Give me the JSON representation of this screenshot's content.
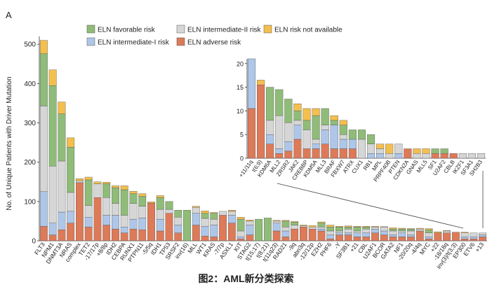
{
  "panel_label": "A",
  "caption": "图2：AML新分类探索",
  "colors": {
    "favorable": "#8fbc78",
    "intermediate1": "#aec6e8",
    "intermediate2": "#d6d6d6",
    "adverse": "#dd7a58",
    "not_available": "#f4bf4e"
  },
  "chart_data": [
    {
      "type": "bar",
      "stacked": true,
      "ylabel": "No. of Unique Patients with Driver Mutation",
      "ylim": [
        0,
        520
      ],
      "yticks": [
        0,
        100,
        200,
        300,
        400,
        500
      ],
      "legend": {
        "placement": "top",
        "entries": [
          {
            "key": "favorable",
            "label": "ELN favorable risk"
          },
          {
            "key": "intermediate2",
            "label": "ELN intermediate-II risk"
          },
          {
            "key": "not_available",
            "label": "ELN risk not available"
          },
          {
            "key": "intermediate1",
            "label": "ELN intermediate-I risk"
          },
          {
            "key": "adverse",
            "label": "ELN adverse risk"
          }
        ]
      },
      "series_order": [
        "adverse",
        "intermediate1",
        "intermediate2",
        "favorable",
        "not_available"
      ],
      "categories": [
        "FLT3",
        "NPM1",
        "DNMT3A",
        "NRAS",
        "complex",
        "TET2",
        "-17/17p",
        "+8/8p",
        "IDH2",
        "CEBPA",
        "RUNX1",
        "PTPN11",
        "-5/5q",
        "IDH1",
        "TP53",
        "SRSF2",
        "inv(16)",
        "MLL",
        "WT1",
        "KRAS",
        "-7/7p",
        "ASXL1",
        "KIT",
        "STAG2",
        "t(15;17)",
        "t(8;21)",
        "t(11q23)",
        "RAD21",
        "-9q",
        "abn3q",
        "-12/12p",
        "EZH2",
        "PHF6",
        "-Y",
        "SF3B1",
        "+21",
        "CBL",
        "U2AF1",
        "BCOR",
        "GATA2",
        "NF1",
        "-20/20q",
        "-4/4q",
        "MYC",
        "+22",
        "-18/18q",
        "inv(3)/t(3;3)",
        "EP300",
        "ETV6",
        "+13"
      ],
      "labeled_categories": [
        "FLT3",
        "NPM1",
        "DNMT3A",
        "NRAS",
        "complex",
        "TET2",
        "-17/17p",
        "+8/8p",
        "IDH2",
        "CEBPA",
        "RUNX1",
        "PTPN11",
        "-5/5q",
        "IDH1",
        "TP53",
        "SRSF2",
        "inv(16)",
        "MLL",
        "WT1",
        "KRAS",
        "-7/7p",
        "ASXL1",
        "KIT",
        "STAG2",
        "t(15;17)",
        "t(8;21)",
        "t(11q23)",
        "RAD21",
        "-9q",
        "abn3q",
        "-12/12p",
        "EZH2",
        "PHF6",
        "-Y",
        "SF3B1",
        "+21",
        "CBL",
        "U2AF1",
        "BCOR",
        "GATA2",
        "NF1",
        "-20/20q",
        "-4/4q",
        "MYC",
        "+22",
        "-18/18q",
        "inv(3)/t(3;3)",
        "EP300",
        "ETV6",
        "+13"
      ],
      "series": [
        {
          "key": "adverse",
          "values": [
            37,
            15,
            28,
            45,
            148,
            35,
            110,
            40,
            30,
            20,
            30,
            28,
            96,
            25,
            70,
            20,
            0,
            40,
            12,
            10,
            65,
            45,
            5,
            15,
            0,
            0,
            25,
            10,
            30,
            35,
            30,
            25,
            5,
            15,
            15,
            10,
            10,
            20,
            15,
            10,
            10,
            10,
            25,
            5,
            20,
            20,
            22,
            5,
            5,
            10
          ]
        },
        {
          "key": "intermediate1",
          "values": [
            88,
            30,
            45,
            30,
            0,
            25,
            0,
            25,
            35,
            15,
            25,
            30,
            0,
            30,
            0,
            20,
            0,
            30,
            25,
            30,
            0,
            20,
            5,
            25,
            0,
            0,
            20,
            15,
            0,
            0,
            0,
            5,
            10,
            5,
            5,
            10,
            10,
            10,
            10,
            5,
            10,
            5,
            0,
            5,
            0,
            0,
            0,
            5,
            5,
            5
          ]
        },
        {
          "key": "intermediate2",
          "values": [
            218,
            145,
            130,
            48,
            5,
            30,
            35,
            45,
            30,
            30,
            40,
            30,
            0,
            25,
            10,
            20,
            0,
            15,
            20,
            15,
            10,
            10,
            15,
            10,
            0,
            0,
            5,
            10,
            10,
            3,
            5,
            5,
            10,
            5,
            10,
            5,
            10,
            5,
            10,
            10,
            5,
            10,
            5,
            10,
            0,
            5,
            0,
            10,
            10,
            5
          ]
        },
        {
          "key": "favorable",
          "values": [
            133,
            205,
            120,
            115,
            0,
            65,
            0,
            35,
            40,
            65,
            25,
            25,
            0,
            30,
            20,
            18,
            78,
            0,
            13,
            15,
            0,
            0,
            30,
            0,
            55,
            58,
            0,
            15,
            7,
            0,
            0,
            10,
            10,
            10,
            5,
            10,
            5,
            0,
            0,
            5,
            5,
            5,
            0,
            8,
            0,
            0,
            0,
            0,
            0,
            0
          ]
        },
        {
          "key": "not_available",
          "values": [
            34,
            40,
            30,
            24,
            5,
            7,
            5,
            4,
            5,
            10,
            6,
            7,
            3,
            5,
            0,
            0,
            0,
            3,
            6,
            2,
            0,
            3,
            5,
            3,
            0,
            0,
            2,
            2,
            2,
            2,
            4,
            3,
            5,
            2,
            3,
            2,
            2,
            2,
            1,
            3,
            2,
            1,
            2,
            3,
            3,
            1,
            0,
            2,
            0,
            0
          ]
        }
      ]
    },
    {
      "type": "bar",
      "stacked": true,
      "inset": true,
      "ylim": [
        0,
        21
      ],
      "yticks": [
        0,
        5,
        10,
        15,
        20
      ],
      "series_order": [
        "adverse",
        "intermediate1",
        "intermediate2",
        "favorable",
        "not_available"
      ],
      "categories": [
        "+11/11q",
        "t(6;9)",
        "KDM6A",
        "MLL2",
        "ZRSR2",
        "JAK2",
        "CREBBP",
        "KDM5A",
        "MLL3",
        "BRAF",
        "FBXW7",
        "ATRX",
        "CUX1",
        "RB1",
        "MPL",
        "PRPF40B",
        "PTEN",
        "CDKN2A",
        "GNAS",
        "MLL5",
        "SF1",
        "U2AF2",
        "CBLB",
        "IKZF1",
        "SF3A1",
        "SH2B3"
      ],
      "series": [
        {
          "key": "adverse",
          "values": [
            10.5,
            15.5,
            3,
            1,
            1.5,
            4,
            2,
            2,
            3,
            2,
            2,
            2,
            0,
            0,
            0,
            0,
            0,
            2,
            0,
            0,
            1,
            1,
            1,
            0,
            0,
            0
          ]
        },
        {
          "key": "intermediate1",
          "values": [
            10.5,
            0,
            2,
            1,
            2,
            3,
            0,
            1,
            3,
            5,
            2,
            2,
            0,
            1,
            1,
            0,
            1,
            0,
            0,
            0,
            0,
            0,
            0,
            0,
            0,
            0
          ]
        },
        {
          "key": "intermediate2",
          "values": [
            0,
            0,
            3,
            7,
            4,
            1,
            4,
            1,
            1,
            0,
            1,
            0,
            4,
            2,
            1,
            1,
            2,
            0,
            1,
            1,
            0,
            0,
            0,
            1,
            1,
            1
          ]
        },
        {
          "key": "favorable",
          "values": [
            0,
            0,
            7,
            5.5,
            5,
            2,
            2,
            5,
            3.5,
            1,
            2,
            2,
            2,
            2,
            0,
            0,
            0,
            0,
            0,
            0,
            1,
            1,
            0,
            0,
            0,
            0
          ]
        },
        {
          "key": "not_available",
          "values": [
            0,
            1,
            0,
            0,
            0,
            1.5,
            2.5,
            1.5,
            0,
            1,
            1,
            0,
            0,
            0,
            1,
            2,
            0,
            0,
            1,
            1,
            0,
            0,
            0,
            0,
            0,
            0
          ]
        }
      ]
    }
  ]
}
